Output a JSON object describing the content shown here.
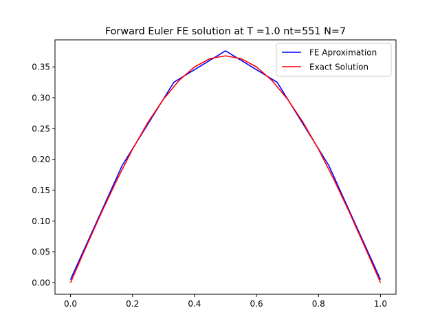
{
  "chart_data": {
    "type": "line",
    "title": "Forward Euler FE solution at T =1.0 nt=551 N=7",
    "xlabel": "",
    "ylabel": "",
    "xlim": [
      -0.05,
      1.05
    ],
    "ylim": [
      -0.0188,
      0.3938
    ],
    "grid": false,
    "legend_position": "top-right",
    "x_ticks": [
      0.0,
      0.2,
      0.4,
      0.6,
      0.8,
      1.0
    ],
    "x_tick_labels": [
      "0.0",
      "0.2",
      "0.4",
      "0.6",
      "0.8",
      "1.0"
    ],
    "y_ticks": [
      0.0,
      0.05,
      0.1,
      0.15,
      0.2,
      0.25,
      0.3,
      0.35
    ],
    "y_tick_labels": [
      "0.00",
      "0.05",
      "0.10",
      "0.15",
      "0.20",
      "0.25",
      "0.30",
      "0.35"
    ],
    "series": [
      {
        "name": "FE Aproximation",
        "color": "#0000ff",
        "x": [
          0.0,
          0.1667,
          0.3333,
          0.5,
          0.6667,
          0.8333,
          1.0
        ],
        "y": [
          0.005,
          0.19,
          0.325,
          0.376,
          0.325,
          0.19,
          0.005
        ]
      },
      {
        "name": "Exact Solution",
        "color": "#ff0000",
        "x": [
          0.0,
          0.05,
          0.1,
          0.15,
          0.2,
          0.25,
          0.3,
          0.35,
          0.4,
          0.45,
          0.5,
          0.55,
          0.6,
          0.65,
          0.7,
          0.75,
          0.8,
          0.85,
          0.9,
          0.95,
          1.0
        ],
        "y": [
          0.0,
          0.0576,
          0.1137,
          0.167,
          0.2163,
          0.2602,
          0.2977,
          0.3279,
          0.3499,
          0.3634,
          0.3679,
          0.3634,
          0.3499,
          0.3279,
          0.2977,
          0.2602,
          0.2163,
          0.167,
          0.1137,
          0.0576,
          0.0
        ]
      }
    ]
  }
}
